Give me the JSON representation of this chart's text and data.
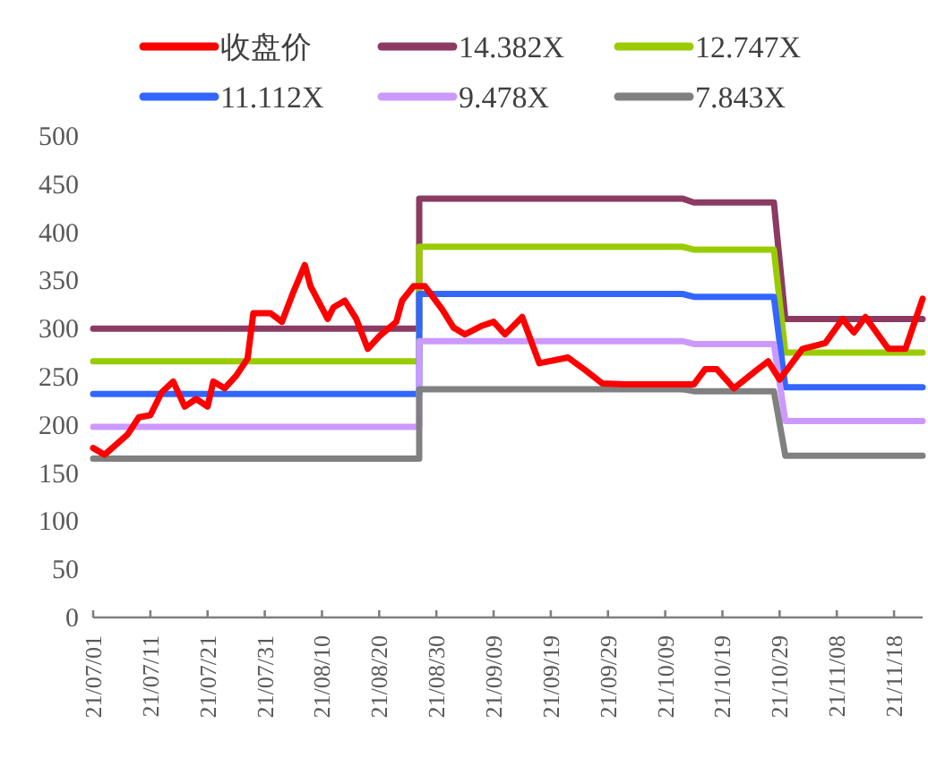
{
  "chart_data": {
    "type": "line",
    "legend": "top",
    "marker": "none",
    "line_style": "solid",
    "xlim": [
      "--07-01",
      "--11-23"
    ],
    "xticks": [
      {
        "value": "--07-01",
        "label": "21/07/01"
      },
      {
        "value": "--07-11",
        "label": "21/07/11"
      },
      {
        "value": "--07-21",
        "label": "21/07/21"
      },
      {
        "value": "--07-31",
        "label": "21/07/31"
      },
      {
        "value": "--08-10",
        "label": "21/08/10"
      },
      {
        "value": "--08-20",
        "label": "21/08/20"
      },
      {
        "value": "--08-30",
        "label": "21/08/30"
      },
      {
        "value": "--09-09",
        "label": "21/09/09"
      },
      {
        "value": "--09-19",
        "label": "21/09/19"
      },
      {
        "value": "--09-29",
        "label": "21/09/29"
      },
      {
        "value": "--10-09",
        "label": "21/10/09"
      },
      {
        "value": "--10-19",
        "label": "21/10/19"
      },
      {
        "value": "--10-29",
        "label": "21/10/29"
      },
      {
        "value": "--11-08",
        "label": "21/11/08"
      },
      {
        "value": "--11-18",
        "label": "21/11/18"
      }
    ],
    "ylim": [
      0,
      500
    ],
    "yticks": [
      0,
      50,
      100,
      150,
      200,
      250,
      300,
      350,
      400,
      450,
      500
    ],
    "series": [
      {
        "name": "收盘价",
        "color": "#ff0000",
        "x": [
          "--07-01",
          "--07-03",
          "--07-07",
          "--07-09",
          "--07-11",
          "--07-13",
          "--07-15",
          "--07-17",
          "--07-19",
          "--07-21",
          "--07-22",
          "--07-24",
          "--07-26",
          "--07-28",
          "--07-29",
          "--08-01",
          "--08-03",
          "--08-05",
          "--08-07",
          "--08-08",
          "--08-11",
          "--08-12",
          "--08-14",
          "--08-16",
          "--08-18",
          "--08-20",
          "--08-23",
          "--08-24",
          "--08-26",
          "--08-28",
          "--08-31",
          "--09-02",
          "--09-04",
          "--09-07",
          "--09-09",
          "--09-11",
          "--09-14",
          "--09-17",
          "--09-22",
          "--09-25",
          "--09-28",
          "--10-02",
          "--10-11",
          "--10-14",
          "--10-16",
          "--10-18",
          "--10-21",
          "--10-25",
          "--10-27",
          "--10-29",
          "--11-02",
          "--11-06",
          "--11-09",
          "--11-11",
          "--11-13",
          "--11-17",
          "--11-20",
          "--11-23"
        ],
        "values": [
          176,
          169,
          190,
          208,
          210,
          234,
          245,
          219,
          227,
          219,
          245,
          238,
          251,
          269,
          316,
          316,
          307,
          338,
          366,
          344,
          310,
          322,
          329,
          310,
          279,
          292,
          307,
          329,
          344,
          344,
          320,
          301,
          294,
          303,
          307,
          294,
          312,
          264,
          270,
          257,
          243,
          242,
          242,
          242,
          258,
          258,
          238,
          257,
          266,
          247,
          279,
          285,
          310,
          296,
          312,
          279,
          279,
          331
        ]
      },
      {
        "name": "14.382X",
        "color": "#8b3a62",
        "x": [
          "--07-01",
          "--08-27",
          "--08-27",
          "--10-12",
          "--10-14",
          "--10-28",
          "--10-30",
          "--11-23"
        ],
        "values": [
          300,
          300,
          435,
          435,
          431,
          431,
          310,
          310
        ]
      },
      {
        "name": "12.747X",
        "color": "#99cc00",
        "x": [
          "--07-01",
          "--08-27",
          "--08-27",
          "--10-12",
          "--10-14",
          "--10-28",
          "--10-30",
          "--11-23"
        ],
        "values": [
          266,
          266,
          385,
          385,
          382,
          382,
          275,
          275
        ]
      },
      {
        "name": "11.112X",
        "color": "#3366ff",
        "x": [
          "--07-01",
          "--08-27",
          "--08-27",
          "--10-12",
          "--10-14",
          "--10-28",
          "--10-30",
          "--11-23"
        ],
        "values": [
          232,
          232,
          336,
          336,
          333,
          333,
          239,
          239
        ]
      },
      {
        "name": "9.478X",
        "color": "#cc99ff",
        "x": [
          "--07-01",
          "--08-27",
          "--08-27",
          "--10-12",
          "--10-14",
          "--10-28",
          "--10-30",
          "--11-23"
        ],
        "values": [
          198,
          198,
          287,
          287,
          284,
          284,
          204,
          204
        ]
      },
      {
        "name": "7.843X",
        "color": "#808080",
        "x": [
          "--07-01",
          "--08-27",
          "--08-27",
          "--10-12",
          "--10-14",
          "--10-28",
          "--10-30",
          "--11-23"
        ],
        "values": [
          165,
          165,
          237,
          237,
          235,
          235,
          168,
          168
        ]
      }
    ]
  }
}
